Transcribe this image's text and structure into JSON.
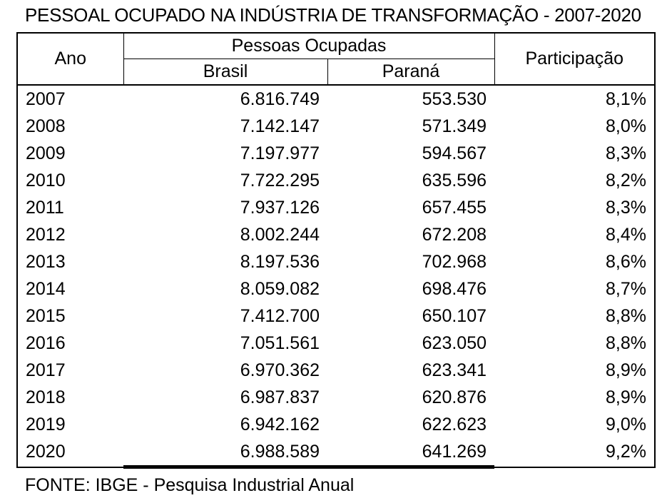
{
  "title": "PESSOAL OCUPADO NA INDÚSTRIA DE TRANSFORMAÇÃO - 2007-2020",
  "source": "FONTE: IBGE - Pesquisa Industrial Anual",
  "table": {
    "header": {
      "ano": "Ano",
      "pessoas_ocupadas": "Pessoas Ocupadas",
      "brasil": "Brasil",
      "parana": "Paraná",
      "participacao": "Participação"
    },
    "rows": [
      {
        "ano": "2007",
        "brasil": "6.816.749",
        "parana": "553.530",
        "participacao": "8,1%"
      },
      {
        "ano": "2008",
        "brasil": "7.142.147",
        "parana": "571.349",
        "participacao": "8,0%"
      },
      {
        "ano": "2009",
        "brasil": "7.197.977",
        "parana": "594.567",
        "participacao": "8,3%"
      },
      {
        "ano": "2010",
        "brasil": "7.722.295",
        "parana": "635.596",
        "participacao": "8,2%"
      },
      {
        "ano": "2011",
        "brasil": "7.937.126",
        "parana": "657.455",
        "participacao": "8,3%"
      },
      {
        "ano": "2012",
        "brasil": "8.002.244",
        "parana": "672.208",
        "participacao": "8,4%"
      },
      {
        "ano": "2013",
        "brasil": "8.197.536",
        "parana": "702.968",
        "participacao": "8,6%"
      },
      {
        "ano": "2014",
        "brasil": "8.059.082",
        "parana": "698.476",
        "participacao": "8,7%"
      },
      {
        "ano": "2015",
        "brasil": "7.412.700",
        "parana": "650.107",
        "participacao": "8,8%"
      },
      {
        "ano": "2016",
        "brasil": "7.051.561",
        "parana": "623.050",
        "participacao": "8,8%"
      },
      {
        "ano": "2017",
        "brasil": "6.970.362",
        "parana": "623.341",
        "participacao": "8,9%"
      },
      {
        "ano": "2018",
        "brasil": "6.987.837",
        "parana": "620.876",
        "participacao": "8,9%"
      },
      {
        "ano": "2019",
        "brasil": "6.942.162",
        "parana": "622.623",
        "participacao": "9,0%"
      },
      {
        "ano": "2020",
        "brasil": "6.988.589",
        "parana": "641.269",
        "participacao": "9,2%"
      }
    ]
  },
  "chart_data": {
    "type": "table",
    "title": "PESSOAL OCUPADO NA INDÚSTRIA DE TRANSFORMAÇÃO - 2007-2020",
    "categories": [
      "2007",
      "2008",
      "2009",
      "2010",
      "2011",
      "2012",
      "2013",
      "2014",
      "2015",
      "2016",
      "2017",
      "2018",
      "2019",
      "2020"
    ],
    "series": [
      {
        "name": "Pessoas Ocupadas - Brasil",
        "values": [
          6816749,
          7142147,
          7197977,
          7722295,
          7937126,
          8002244,
          8197536,
          8059082,
          7412700,
          7051561,
          6970362,
          6987837,
          6942162,
          6988589
        ]
      },
      {
        "name": "Pessoas Ocupadas - Paraná",
        "values": [
          553530,
          571349,
          594567,
          635596,
          657455,
          672208,
          702968,
          698476,
          650107,
          623050,
          623341,
          620876,
          622623,
          641269
        ]
      },
      {
        "name": "Participação (%)",
        "values": [
          8.1,
          8.0,
          8.3,
          8.2,
          8.3,
          8.4,
          8.6,
          8.7,
          8.8,
          8.8,
          8.9,
          8.9,
          9.0,
          9.2
        ]
      }
    ],
    "source": "FONTE: IBGE - Pesquisa Industrial Anual"
  }
}
